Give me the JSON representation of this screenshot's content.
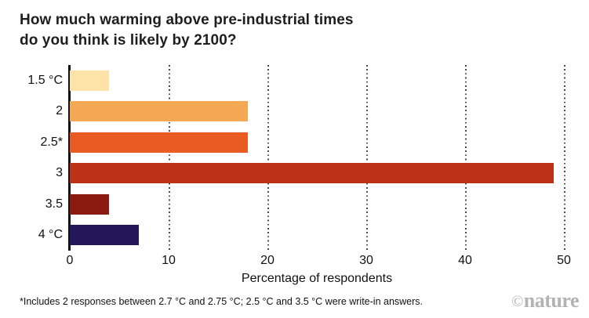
{
  "title": {
    "line1": "How much warming above pre-industrial times",
    "line2": "do you think is likely by 2100?"
  },
  "chart_data": {
    "type": "bar",
    "orientation": "horizontal",
    "title": "How much warming above pre-industrial times do you think is likely by 2100?",
    "categories": [
      "1.5 °C",
      "2",
      "2.5*",
      "3",
      "3.5",
      "4 °C"
    ],
    "values": [
      4,
      18,
      18,
      49,
      4,
      7
    ],
    "bar_colors": [
      "#FDE3A7",
      "#F4A853",
      "#EA5B23",
      "#BB3218",
      "#8B1A10",
      "#251659"
    ],
    "xlabel": "Percentage of respondents",
    "ylabel": "",
    "x_ticks": [
      0,
      10,
      20,
      30,
      40,
      50
    ],
    "xlim": [
      0,
      50
    ],
    "grid": "vertical-dotted",
    "legend": "none",
    "axis_color": "#111111"
  },
  "footnote": {
    "text": "*Includes 2 responses between 2.7 °C and 2.75 °C; 2.5 °C and 3.5 °C were write-in answers."
  },
  "logo": {
    "copyright": "©",
    "text": "nature"
  }
}
